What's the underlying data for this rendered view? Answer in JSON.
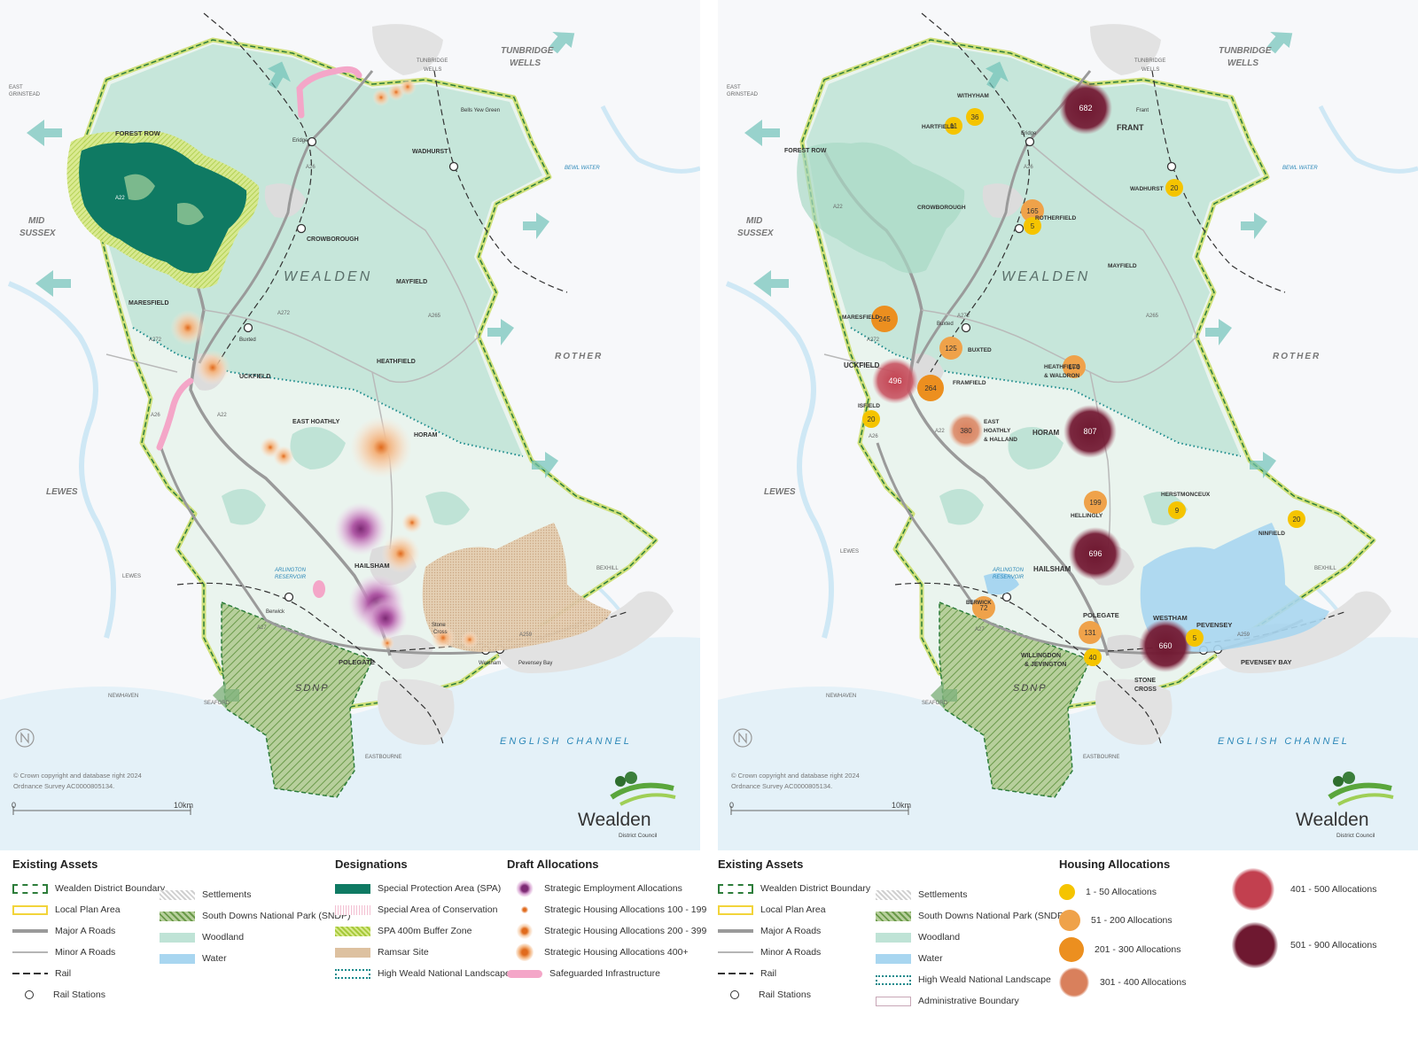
{
  "maps": {
    "common": {
      "district_label": "WEALDEN",
      "copyright_line1": "© Crown copyright and database right 2024",
      "copyright_line2": "Ordnance Survey AC0000805134.",
      "scale_start": "0",
      "scale_end": "10km",
      "logo_name": "Wealden",
      "logo_sub": "District Council",
      "sea_label": "ENGLISH CHANNEL",
      "neighbours": {
        "tunbridge_wells": [
          "TUNBRIDGE",
          "WELLS"
        ],
        "mid_sussex": [
          "MID",
          "SUSSEX"
        ],
        "rother": "ROTHER",
        "lewes": "LEWES",
        "sdnp": "SDNP"
      },
      "places": {
        "east_grinstead": [
          "EAST",
          "GRINSTEAD"
        ],
        "tunbridge_wells_small": [
          "TUNBRIDGE",
          "WELLS"
        ],
        "bewl_water": "BEWL WATER",
        "arlington": [
          "ARLINGTON",
          "RESERVOIR"
        ],
        "lewes_town": "LEWES",
        "newhaven": "NEWHAVEN",
        "seaford": "SEAFORD",
        "eastbourne": "EASTBOURNE",
        "bexhill": "BEXHILL"
      }
    },
    "left": {
      "places": {
        "forest_row": "FOREST ROW",
        "eridge": "Eridge",
        "bells_yew_green": "Bells Yew Green",
        "wadhurst": "WADHURST",
        "crowborough": "CROWBOROUGH",
        "mayfield": "MAYFIELD",
        "maresfield": "MARESFIELD",
        "buxted": "Buxted",
        "uckfield": "UCKFIELD",
        "heathfield": "HEATHFIELD",
        "east_hoathly": "EAST HOATHLY",
        "horam": "HORAM",
        "hailsham": "HAILSHAM",
        "berwick": "Berwick",
        "polegate": "POLEGATE",
        "stone_cross": [
          "Stone",
          "Cross"
        ],
        "westham": "Westham",
        "pevensey_bay": "Pevensey Bay"
      },
      "roads": {
        "a22": "A22",
        "a26": "A26",
        "a272": "A272",
        "a265": "A265",
        "a27": "A27",
        "a259": "A259"
      }
    },
    "right": {
      "places": {
        "withyham": "WITHYHAM",
        "hartfield": "HARTFIELD",
        "eridge": "Eridge",
        "frant_small": "Frant",
        "frant": "FRANT",
        "forest_row": "FOREST ROW",
        "wadhurst": "WADHURST",
        "crowborough": "CROWBOROUGH",
        "rotherfield": "ROTHERFIELD",
        "mayfield": "MAYFIELD",
        "maresfield": "MARESFIELD",
        "buxted_small": "Buxted",
        "buxted": "BUXTED",
        "uckfield": "UCKFIELD",
        "framfield": "FRAMFIELD",
        "heathfield": [
          "HEATHFIELD",
          "& WALDRON"
        ],
        "isfield": "ISFIELD",
        "east_hoathly": [
          "EAST",
          "HOATHLY",
          "& HALLAND"
        ],
        "horam": "HORAM",
        "herstmonceux": "HERSTMONCEUX",
        "hellingly": "HELLINGLY",
        "ninfield": "NINFIELD",
        "hailsham": "HAILSHAM",
        "berwick": "BERWICK",
        "polegate": "POLEGATE",
        "westham": "WESTHAM",
        "pevensey": "PEVENSEY",
        "pevensey_bay": "PEVENSEY BAY",
        "willingdon": [
          "WILLINGDON",
          "& JEVINGTON"
        ],
        "stone_cross": [
          "STONE",
          "CROSS"
        ]
      },
      "roads": {
        "a22": "A22",
        "a26": "A26",
        "a272": "A272",
        "a265": "A265",
        "a27": "A27",
        "a259": "A259"
      },
      "allocations": [
        {
          "name": "Frant",
          "value": "682",
          "band": "501-900"
        },
        {
          "name": "Withyham",
          "value": "36",
          "band": "1-50"
        },
        {
          "name": "Hartfield",
          "value": "11",
          "band": "1-50"
        },
        {
          "name": "Wadhurst",
          "value": "20",
          "band": "1-50"
        },
        {
          "name": "Crowborough",
          "value": "165",
          "band": "51-200"
        },
        {
          "name": "Rotherfield",
          "value": "5",
          "band": "1-50"
        },
        {
          "name": "Maresfield",
          "value": "245",
          "band": "201-300"
        },
        {
          "name": "Buxted",
          "value": "125",
          "band": "51-200"
        },
        {
          "name": "Heathfield & Waldron",
          "value": "176",
          "band": "51-200"
        },
        {
          "name": "Uckfield",
          "value": "496",
          "band": "401-500"
        },
        {
          "name": "Framfield",
          "value": "264",
          "band": "201-300"
        },
        {
          "name": "Isfield",
          "value": "20",
          "band": "1-50"
        },
        {
          "name": "East Hoathly & Halland",
          "value": "380",
          "band": "301-400"
        },
        {
          "name": "Horam",
          "value": "807",
          "band": "501-900"
        },
        {
          "name": "Hellingly",
          "value": "199",
          "band": "51-200"
        },
        {
          "name": "Herstmonceux",
          "value": "9",
          "band": "1-50"
        },
        {
          "name": "Ninfield",
          "value": "20",
          "band": "1-50"
        },
        {
          "name": "Hailsham",
          "value": "696",
          "band": "501-900"
        },
        {
          "name": "Berwick",
          "value": "72",
          "band": "51-200"
        },
        {
          "name": "Polegate",
          "value": "131",
          "band": "51-200"
        },
        {
          "name": "Willingdon & Jevington",
          "value": "40",
          "band": "1-50"
        },
        {
          "name": "Westham",
          "value": "660",
          "band": "501-900"
        },
        {
          "name": "Pevensey",
          "value": "5",
          "band": "1-50"
        }
      ]
    }
  },
  "legend_left": {
    "existing_title": "Existing Assets",
    "existing": [
      "Wealden District Boundary",
      "Local Plan Area",
      "Major A Roads",
      "Minor A Roads",
      "Rail",
      "Rail Stations"
    ],
    "existing2": [
      "Settlements",
      "South Downs National Park (SNDP)",
      "Woodland",
      "Water"
    ],
    "designations_title": "Designations",
    "designations": [
      "Special Protection Area (SPA)",
      "Special Area of Conservation",
      "SPA 400m Buffer Zone",
      "Ramsar Site",
      "High Weald National Landscape"
    ],
    "draft_title": "Draft Allocations",
    "draft": [
      "Strategic Employment Allocations",
      "Strategic Housing Allocations 100 - 199",
      "Strategic Housing Allocations 200 - 399",
      "Strategic Housing Allocations 400+",
      "Safeguarded Infrastructure"
    ]
  },
  "legend_right": {
    "existing_title": "Existing Assets",
    "existing": [
      "Wealden District Boundary",
      "Local Plan Area",
      "Major A Roads",
      "Minor A Roads",
      "Rail",
      "Rail Stations"
    ],
    "existing2": [
      "Settlements",
      "South Downs National Park (SNDP)",
      "Woodland",
      "Water",
      "High Weald National Landscape",
      "Administrative Boundary"
    ],
    "housing_title": "Housing Allocations",
    "housing": [
      "1 - 50 Allocations",
      "51 - 200 Allocations",
      "201 - 300 Allocations",
      "301 - 400 Allocations"
    ],
    "housing2": [
      "401 - 500 Allocations",
      "501 - 900 Allocations"
    ]
  },
  "colors": {
    "band_1_50": "#f5c400",
    "band_51_200": "#efa24a",
    "band_201_300": "#ec8f1f",
    "band_301_400": "#d9805c",
    "band_401_500": "#c2404f",
    "band_501_900": "#6e1830",
    "woodland": "#bfe3d6",
    "water": "#a8d6f0",
    "spa": "#0f7a63",
    "ramsar": "#ddc1a0",
    "employment": "#9b3a8f",
    "housing_strategic": "#e97a2e",
    "safeguarded": "#f4a6c8"
  }
}
